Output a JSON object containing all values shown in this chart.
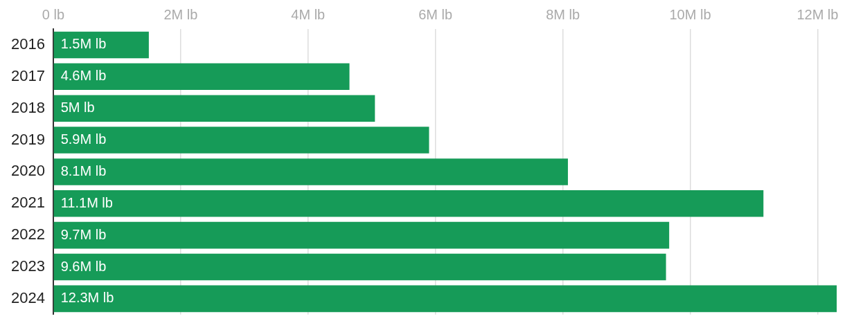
{
  "chart_data": {
    "type": "bar",
    "orientation": "horizontal",
    "categories": [
      "2016",
      "2017",
      "2018",
      "2019",
      "2020",
      "2021",
      "2022",
      "2023",
      "2024"
    ],
    "values": [
      1.5,
      4.65,
      5.05,
      5.9,
      8.08,
      11.15,
      9.67,
      9.62,
      12.3
    ],
    "value_labels": [
      "1.5M lb",
      "4.6M lb",
      "5M lb",
      "5.9M lb",
      "8.1M lb",
      "11.1M lb",
      "9.7M lb",
      "9.6M lb",
      "12.3M lb"
    ],
    "color": "#169b58",
    "xlim": [
      0,
      12.3
    ],
    "xticks": [
      {
        "value": 0,
        "label": "0 lb"
      },
      {
        "value": 2,
        "label": "2M lb"
      },
      {
        "value": 4,
        "label": "4M lb"
      },
      {
        "value": 6,
        "label": "6M lb"
      },
      {
        "value": 8,
        "label": "8M lb"
      },
      {
        "value": 10,
        "label": "10M lb"
      },
      {
        "value": 12,
        "label": "12M lb"
      }
    ],
    "grid": "x",
    "legend": false
  }
}
